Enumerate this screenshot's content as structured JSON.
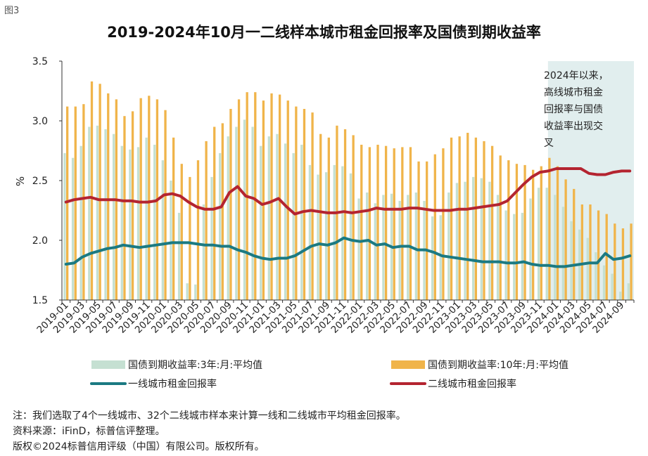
{
  "figure_label": "图3",
  "chart_data": {
    "type": "bar+line",
    "title": "2019-2024年10月一二线样本城市租金回报率及国债到期收益率",
    "ylabel": "%",
    "ylim": [
      1.5,
      3.5
    ],
    "yticks": [
      "1.5",
      "2.0",
      "2.5",
      "3.0",
      "3.5"
    ],
    "xtick_labels": [
      "2019-01",
      "2019-03",
      "2019-05",
      "2019-07",
      "2019-09",
      "2019-11",
      "2020-01",
      "2020-03",
      "2020-05",
      "2020-07",
      "2020-09",
      "2020-11",
      "2021-01",
      "2021-03",
      "2021-05",
      "2021-07",
      "2021-09",
      "2021-11",
      "2022-01",
      "2022-03",
      "2022-05",
      "2022-07",
      "2022-09",
      "2022-11",
      "2023-01",
      "2023-03",
      "2023-05",
      "2023-07",
      "2023-09",
      "2023-11",
      "2024-01",
      "2024-03",
      "2024-05",
      "2024-07",
      "2024-09"
    ],
    "x_start": "2019-01",
    "x_end": "2024-10",
    "grid": false,
    "legend_position": "bottom",
    "series": [
      {
        "name": "国债到期收益率:3年:月:平均值",
        "type": "bar",
        "color": "#c5e0d2",
        "values": [
          2.73,
          2.69,
          2.79,
          2.95,
          2.96,
          2.93,
          2.89,
          2.79,
          2.76,
          2.78,
          2.86,
          2.8,
          2.67,
          2.5,
          2.23,
          1.64,
          1.63,
          2.3,
          2.53,
          2.73,
          2.87,
          2.95,
          3.01,
          2.95,
          2.79,
          2.87,
          2.89,
          2.81,
          2.73,
          2.8,
          2.63,
          2.55,
          2.57,
          2.63,
          2.62,
          2.56,
          2.35,
          2.4,
          2.31,
          2.38,
          2.39,
          2.33,
          2.38,
          2.4,
          2.33,
          2.2,
          2.21,
          2.4,
          2.48,
          2.49,
          2.53,
          2.52,
          2.49,
          2.38,
          2.25,
          2.22,
          2.23,
          2.35,
          2.44,
          2.44,
          2.38,
          2.28,
          2.16,
          2.09,
          2.02,
          1.9,
          1.79,
          1.72,
          1.57,
          1.64
        ]
      },
      {
        "name": "国债到期收益率:10年:月:平均值",
        "type": "bar",
        "color": "#f0b44a",
        "values": [
          3.12,
          3.12,
          3.14,
          3.33,
          3.31,
          3.23,
          3.18,
          3.04,
          3.08,
          3.19,
          3.21,
          3.18,
          3.09,
          2.86,
          2.64,
          2.53,
          2.67,
          2.83,
          2.95,
          2.98,
          3.1,
          3.18,
          3.24,
          3.24,
          3.17,
          3.23,
          3.22,
          3.17,
          3.12,
          3.1,
          3.07,
          2.89,
          2.86,
          2.96,
          2.93,
          2.88,
          2.8,
          2.78,
          2.8,
          2.79,
          2.77,
          2.78,
          2.78,
          2.66,
          2.66,
          2.72,
          2.77,
          2.86,
          2.87,
          2.9,
          2.86,
          2.83,
          2.79,
          2.71,
          2.67,
          2.64,
          2.63,
          2.59,
          2.62,
          2.69,
          2.62,
          2.51,
          2.43,
          2.3,
          2.3,
          2.25,
          2.22,
          2.14,
          2.1,
          2.14
        ]
      },
      {
        "name": "一线城市租金回报率",
        "type": "line",
        "color": "#1b7a82",
        "values": [
          1.8,
          1.81,
          1.86,
          1.89,
          1.91,
          1.93,
          1.94,
          1.96,
          1.95,
          1.94,
          1.95,
          1.96,
          1.97,
          1.98,
          1.98,
          1.98,
          1.97,
          1.96,
          1.96,
          1.95,
          1.95,
          1.92,
          1.9,
          1.87,
          1.85,
          1.84,
          1.85,
          1.85,
          1.87,
          1.91,
          1.95,
          1.97,
          1.96,
          1.98,
          2.02,
          2.0,
          1.99,
          2.0,
          1.96,
          1.97,
          1.94,
          1.95,
          1.95,
          1.92,
          1.92,
          1.9,
          1.87,
          1.86,
          1.85,
          1.84,
          1.83,
          1.82,
          1.82,
          1.82,
          1.81,
          1.81,
          1.82,
          1.8,
          1.79,
          1.79,
          1.78,
          1.78,
          1.79,
          1.8,
          1.81,
          1.81,
          1.89,
          1.84,
          1.85,
          1.87
        ]
      },
      {
        "name": "二线城市租金回报率",
        "type": "line",
        "color": "#b42430",
        "values": [
          2.32,
          2.34,
          2.35,
          2.36,
          2.34,
          2.34,
          2.34,
          2.33,
          2.33,
          2.32,
          2.32,
          2.33,
          2.38,
          2.39,
          2.37,
          2.32,
          2.28,
          2.26,
          2.26,
          2.28,
          2.4,
          2.45,
          2.37,
          2.35,
          2.3,
          2.32,
          2.35,
          2.28,
          2.22,
          2.24,
          2.25,
          2.24,
          2.23,
          2.23,
          2.24,
          2.23,
          2.24,
          2.25,
          2.27,
          2.26,
          2.26,
          2.26,
          2.27,
          2.27,
          2.26,
          2.25,
          2.25,
          2.25,
          2.26,
          2.26,
          2.27,
          2.28,
          2.29,
          2.3,
          2.33,
          2.4,
          2.47,
          2.53,
          2.57,
          2.58,
          2.6,
          2.6,
          2.6,
          2.6,
          2.56,
          2.55,
          2.55,
          2.57,
          2.58,
          2.58
        ]
      }
    ],
    "annotation": "2024年以来，高线城市租金回报率与国债收益率出现交叉",
    "annotation_lines": [
      "2024年以来，",
      "高线城市租金",
      "回报率与国债",
      "收益率出现交",
      "叉"
    ],
    "shaded_period": [
      "2024-01",
      "2024-10"
    ]
  },
  "notes": [
    "注：我们选取了4个一线城市、32个二线城市样本来计算一线和二线城市平均租金回报率。",
    "资料来源：iFinD，标普信评整理。",
    "版权©2024标普信用评级（中国）有限公司。版权所有。"
  ],
  "colors": {
    "bar3y": "#c5e0d2",
    "bar10y": "#f0b44a",
    "tier1": "#1b7a82",
    "tier2": "#b42430",
    "shade": "#e1eeee"
  }
}
